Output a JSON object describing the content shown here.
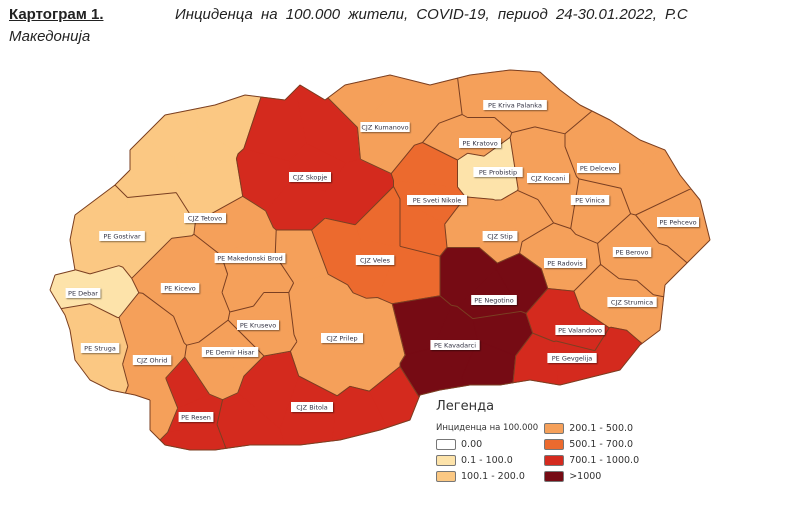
{
  "header": {
    "label": "Картограм 1.",
    "text": "Инциденца  на 100.000 жители, COVID-19, период 24-30.01.2022, Р.С",
    "text_line2": "Македонија"
  },
  "legend": {
    "title": "Легенда",
    "subtitle": "Инциденца на 100.000",
    "bins": [
      {
        "label": "0.00",
        "color": "#ffffff"
      },
      {
        "label": "0.1 - 100.0",
        "color": "#fde3aa"
      },
      {
        "label": "100.1 - 200.0",
        "color": "#fbc883"
      },
      {
        "label": "200.1 - 500.0",
        "color": "#f5a05a"
      },
      {
        "label": "500.1 - 700.0",
        "color": "#ec6a2e"
      },
      {
        "label": "700.1 - 1000.0",
        "color": "#d42a1e"
      },
      {
        "label": ">1000",
        "color": "#760b14"
      }
    ]
  },
  "regions": [
    {
      "name": "CJZ Tetovo",
      "bin": 2
    },
    {
      "name": "CJZ Skopje",
      "bin": 5
    },
    {
      "name": "CJZ Kumanovo",
      "bin": 3
    },
    {
      "name": "PE Kriva Palanka",
      "bin": 3
    },
    {
      "name": "PE Kratovo",
      "bin": 3
    },
    {
      "name": "PE Probistip",
      "bin": 1
    },
    {
      "name": "CJZ Kocani",
      "bin": 3
    },
    {
      "name": "PE Delcevo",
      "bin": 3
    },
    {
      "name": "PE Vinica",
      "bin": 3
    },
    {
      "name": "PE Pehcevo",
      "bin": 3
    },
    {
      "name": "PE Berovo",
      "bin": 3
    },
    {
      "name": "CJZ Stip",
      "bin": 3
    },
    {
      "name": "PE Sveti Nikole",
      "bin": 4
    },
    {
      "name": "CJZ Veles",
      "bin": 4
    },
    {
      "name": "PE Radovis",
      "bin": 3
    },
    {
      "name": "CJZ Strumica",
      "bin": 3
    },
    {
      "name": "PE Negotino",
      "bin": 6
    },
    {
      "name": "PE Kavadarci",
      "bin": 6
    },
    {
      "name": "PE Valandovo",
      "bin": 5
    },
    {
      "name": "PE Gevgelija",
      "bin": 5
    },
    {
      "name": "CJZ Prilep",
      "bin": 3
    },
    {
      "name": "CJZ Bitola",
      "bin": 5
    },
    {
      "name": "PE Resen",
      "bin": 5
    },
    {
      "name": "PE Demir Hisar",
      "bin": 3
    },
    {
      "name": "PE Krusevo",
      "bin": 3
    },
    {
      "name": "CJZ Ohrid",
      "bin": 3
    },
    {
      "name": "PE Struga",
      "bin": 2
    },
    {
      "name": "PE Debar",
      "bin": 1
    },
    {
      "name": "PE Kicevo",
      "bin": 3
    },
    {
      "name": "PE Makedonski Brod",
      "bin": 3
    },
    {
      "name": "PE Gostivar",
      "bin": 2
    }
  ]
}
